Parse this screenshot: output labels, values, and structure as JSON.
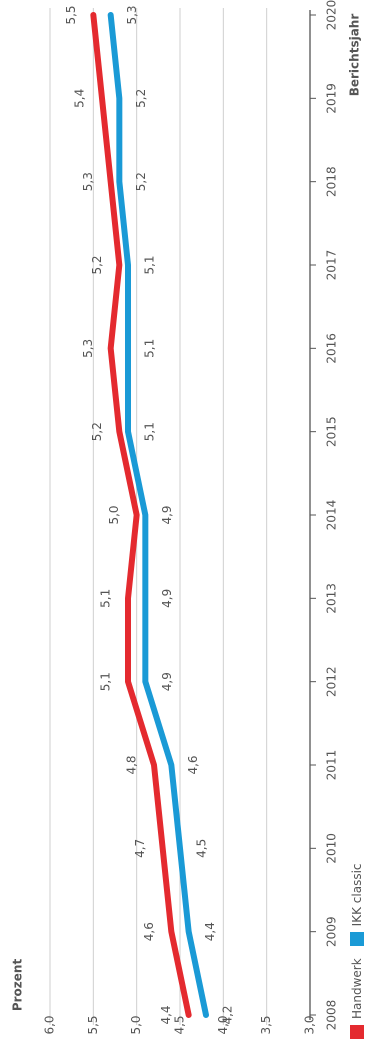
{
  "chart_data": {
    "type": "line",
    "ylabel": "Prozent",
    "xlabel": "Berichtsjahr",
    "x": [
      "2008",
      "2009",
      "2010",
      "2011",
      "2012",
      "2013",
      "2014",
      "2015",
      "2016",
      "2017",
      "2018",
      "2019",
      "2020"
    ],
    "ylim": [
      3.0,
      6.0
    ],
    "yticks": [
      "3,0",
      "3,5",
      "4,0",
      "4,5",
      "5,0",
      "5,5",
      "6,0"
    ],
    "series": [
      {
        "name": "Handwerk",
        "color": "#e42a2f",
        "values": [
          4.4,
          4.6,
          4.7,
          4.8,
          5.1,
          5.1,
          5.0,
          5.2,
          5.3,
          5.2,
          5.3,
          5.4,
          5.5
        ],
        "labels": [
          "4,4",
          "4,6",
          "4,7",
          "4,8",
          "5,1",
          "5,1",
          "5,0",
          "5,2",
          "5,3",
          "5,2",
          "5,3",
          "5,4",
          "5,5"
        ]
      },
      {
        "name": "IKK classic",
        "color": "#1a9ad6",
        "values": [
          4.2,
          4.4,
          4.5,
          4.6,
          4.9,
          4.9,
          4.9,
          5.1,
          5.1,
          5.1,
          5.2,
          5.2,
          5.3
        ],
        "labels": [
          "4,2",
          "4,4",
          "4,5",
          "4,6",
          "4,9",
          "4,9",
          "4,9",
          "5,1",
          "5,1",
          "5,1",
          "5,2",
          "5,2",
          "5,3"
        ]
      }
    ],
    "legend_position": "bottom-left",
    "grid": true,
    "orientation": "rotated-90-counterclockwise"
  }
}
